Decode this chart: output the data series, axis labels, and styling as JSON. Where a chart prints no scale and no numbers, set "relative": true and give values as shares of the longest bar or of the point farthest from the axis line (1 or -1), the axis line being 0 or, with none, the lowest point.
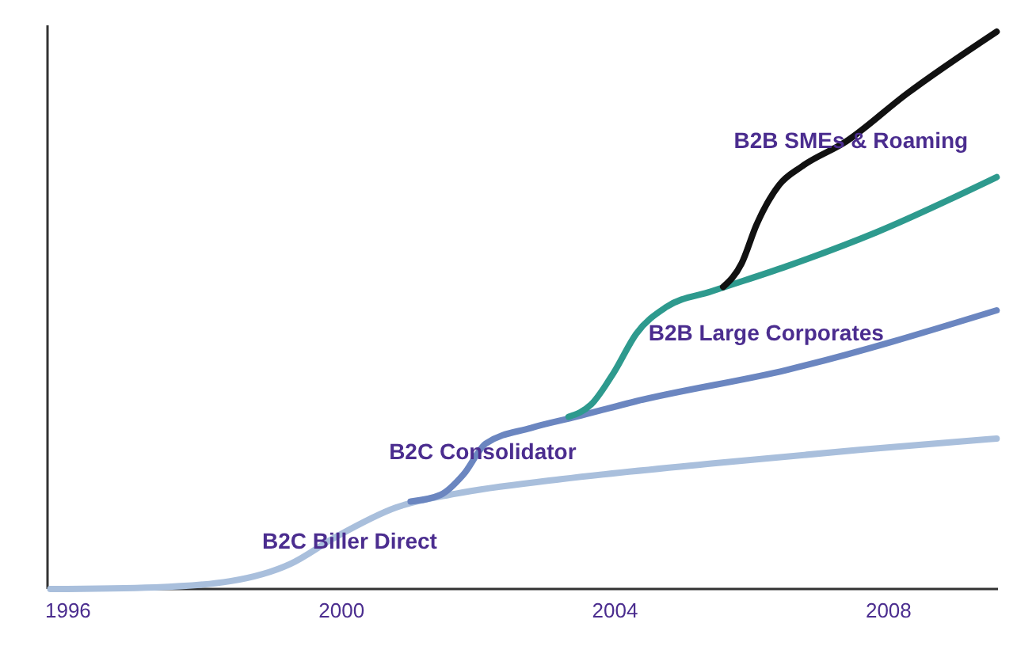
{
  "chart_data": {
    "type": "line",
    "relative": true,
    "xlim": [
      1995.7,
      2009.6
    ],
    "xticks": [
      1996,
      2000,
      2004,
      2008
    ],
    "grid": false,
    "line_style": "solid",
    "series": [
      {
        "name": "B2C Biller Direct",
        "color": "#a9bfdc",
        "x": [
          1995.74,
          1997.27,
          1998.37,
          1999.25,
          1999.91,
          2000.79,
          2001.67,
          2003.21,
          2005.41,
          2007.6,
          2009.58
        ],
        "values": [
          0,
          0.003,
          0.014,
          0.045,
          0.093,
          0.146,
          0.171,
          0.197,
          0.225,
          0.25,
          0.27
        ]
      },
      {
        "name": "B2C Consolidator",
        "color": "#6b86c0",
        "x": [
          2001.01,
          2001.45,
          2001.78,
          2002.11,
          2002.77,
          2003.43,
          2004.31,
          2006.51,
          2009.58
        ],
        "values": [
          0.157,
          0.169,
          0.205,
          0.261,
          0.289,
          0.309,
          0.337,
          0.393,
          0.5
        ]
      },
      {
        "name": "B2B Large Corporates",
        "color": "#2e9a8e",
        "x": [
          2003.32,
          2003.65,
          2003.98,
          2004.31,
          2004.75,
          2005.41,
          2006.51,
          2007.82,
          2009.58
        ],
        "values": [
          0.309,
          0.331,
          0.388,
          0.458,
          0.506,
          0.534,
          0.579,
          0.64,
          0.739
        ]
      },
      {
        "name": "B2B SMEs & Roaming",
        "color": "#111111",
        "x": [
          2005.58,
          2005.85,
          2006.07,
          2006.4,
          2006.73,
          2007.38,
          2008.26,
          2009.58
        ],
        "values": [
          0.542,
          0.584,
          0.654,
          0.725,
          0.758,
          0.803,
          0.888,
          1
        ]
      }
    ]
  }
}
